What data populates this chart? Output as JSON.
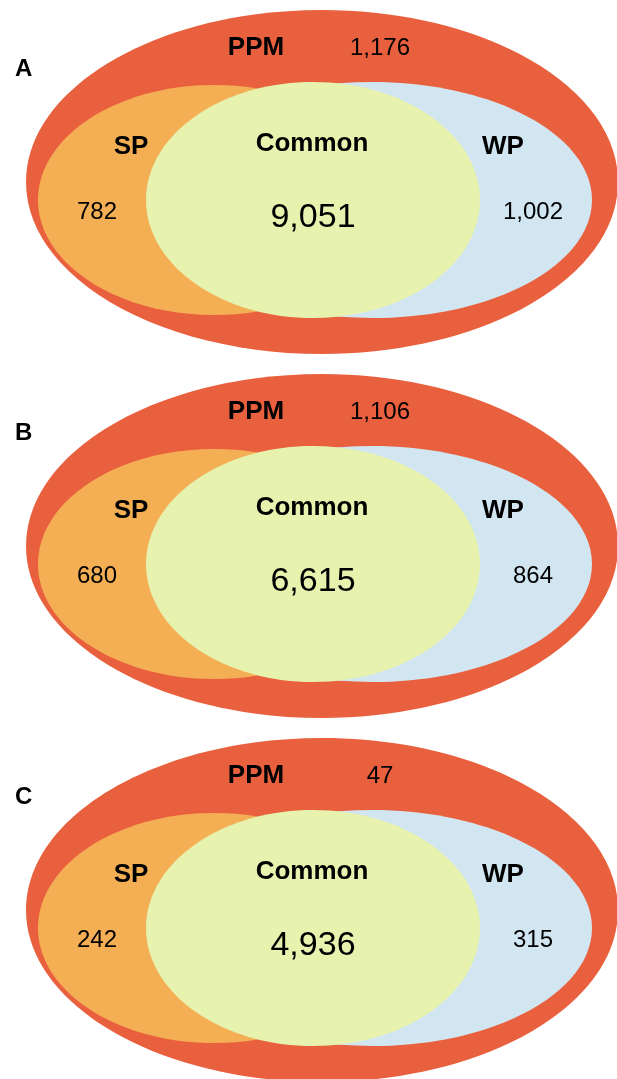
{
  "chart_data": [
    {
      "type": "other",
      "title": "A",
      "categories": [
        "PPM",
        "SP",
        "WP",
        "Common"
      ],
      "values": [
        1176,
        782,
        1002,
        9051
      ],
      "value_labels": [
        "1,176",
        "782",
        "1,002",
        "9,051"
      ],
      "colors": [
        "#e9603f",
        "#f4af55",
        "#d2e6f1",
        "#e6f2ae"
      ]
    },
    {
      "type": "other",
      "title": "B",
      "categories": [
        "PPM",
        "SP",
        "WP",
        "Common"
      ],
      "values": [
        1106,
        680,
        864,
        6615
      ],
      "value_labels": [
        "1,106",
        "680",
        "864",
        "6,615"
      ],
      "colors": [
        "#e9603f",
        "#f4af55",
        "#d2e6f1",
        "#e6f2ae"
      ]
    },
    {
      "type": "other",
      "title": "C",
      "categories": [
        "PPM",
        "SP",
        "WP",
        "Common"
      ],
      "values": [
        47,
        242,
        315,
        4936
      ],
      "value_labels": [
        "47",
        "242",
        "315",
        "4,936"
      ],
      "colors": [
        "#e9603f",
        "#f4af55",
        "#d2e6f1",
        "#e6f2ae"
      ]
    }
  ]
}
